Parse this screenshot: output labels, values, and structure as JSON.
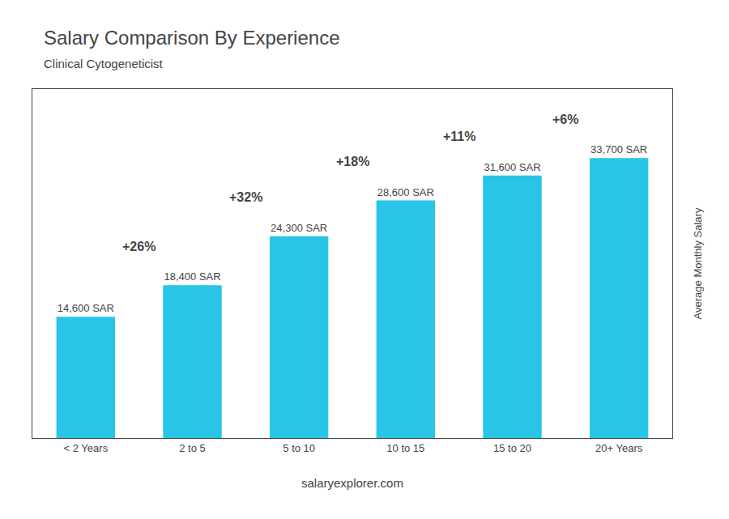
{
  "chart_data": {
    "type": "bar",
    "title": "Salary Comparison By Experience",
    "subtitle": "Clinical Cytogeneticist",
    "categories": [
      "< 2 Years",
      "2 to 5",
      "5 to 10",
      "10 to 15",
      "15 to 20",
      "20+ Years"
    ],
    "values": [
      14600,
      18400,
      24300,
      28600,
      31600,
      33700
    ],
    "value_labels": [
      "14,600 SAR",
      "18,400 SAR",
      "24,300 SAR",
      "28,600 SAR",
      "31,600 SAR",
      "33,700 SAR"
    ],
    "data_labels": true,
    "color": "#29c5e6",
    "ylabel": "Average Monthly Salary",
    "ylim": [
      0,
      42000
    ],
    "tick_labels": "x",
    "grid": false,
    "annotations": [
      "+26%",
      "+32%",
      "+18%",
      "+11%",
      "+6%"
    ],
    "footer": "salaryexplorer.com"
  }
}
